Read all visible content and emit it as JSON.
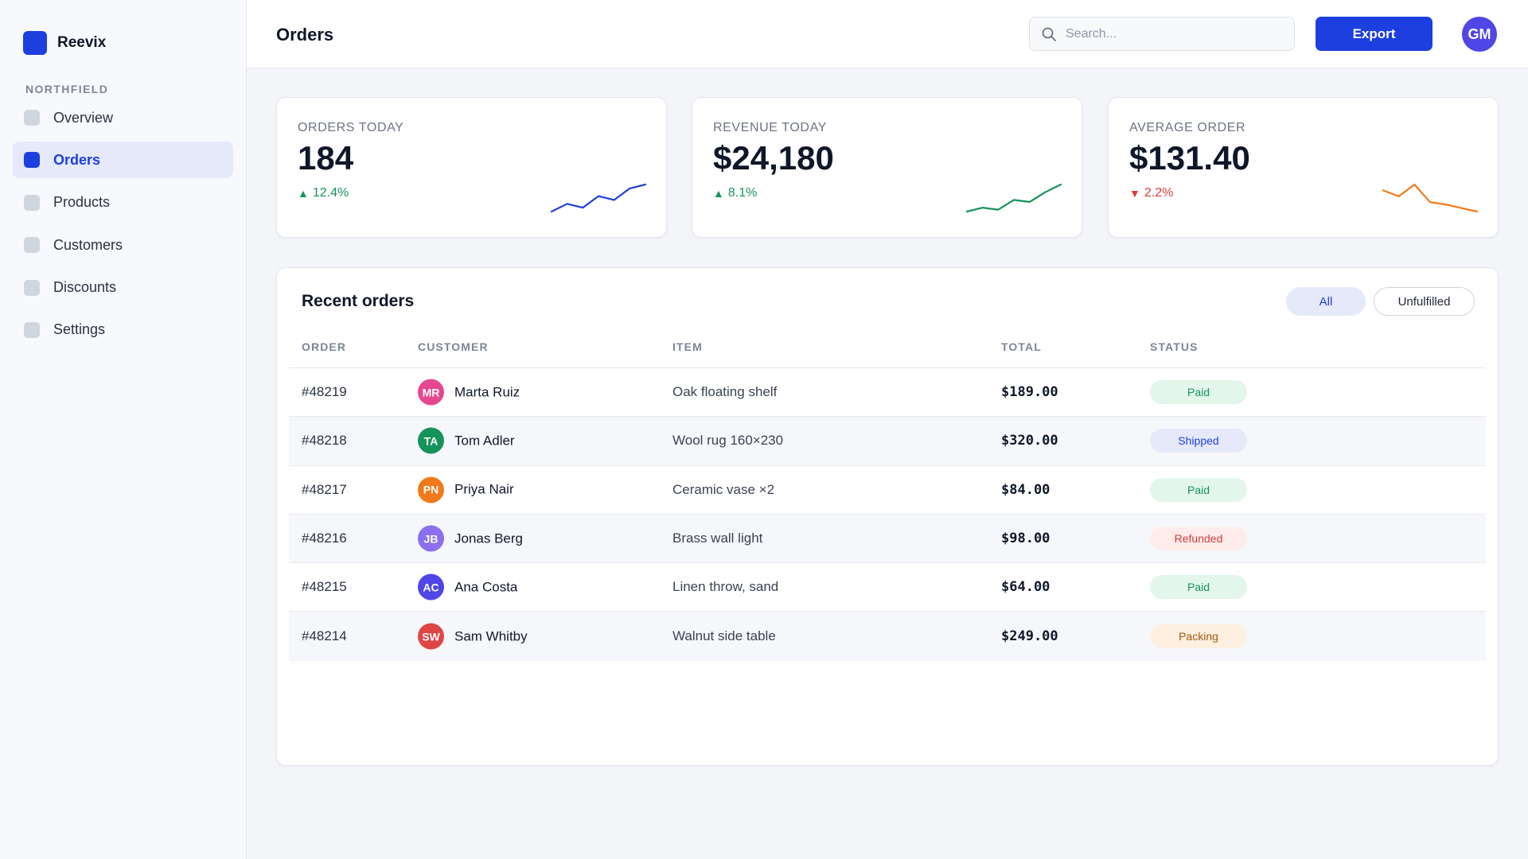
{
  "brand": {
    "name": "Reevix",
    "color": "#1d3fe0"
  },
  "sidebar": {
    "workspace": "NORTHFIELD",
    "items": [
      {
        "label": "Overview",
        "icon": "overview-icon",
        "active": false
      },
      {
        "label": "Orders",
        "icon": "orders-icon",
        "active": true
      },
      {
        "label": "Products",
        "icon": "products-icon",
        "active": false
      },
      {
        "label": "Customers",
        "icon": "customers-icon",
        "active": false
      },
      {
        "label": "Discounts",
        "icon": "discounts-icon",
        "active": false
      },
      {
        "label": "Settings",
        "icon": "settings-icon",
        "active": false
      }
    ]
  },
  "header": {
    "title": "Orders",
    "search_placeholder": "Search...",
    "export_label": "Export",
    "user_initials": "GM"
  },
  "stats": [
    {
      "label": "ORDERS TODAY",
      "value": "184",
      "delta": "12.4%",
      "trend": "up",
      "spark_color": "#1d3fe0",
      "spark": [
        3,
        5,
        4,
        7,
        6,
        9,
        10
      ]
    },
    {
      "label": "REVENUE TODAY",
      "value": "$24,180",
      "delta": "8.1%",
      "trend": "up",
      "spark_color": "#16935a",
      "spark": [
        3,
        4,
        3.5,
        6,
        5.5,
        8,
        10
      ]
    },
    {
      "label": "AVERAGE ORDER",
      "value": "$131.40",
      "delta": "2.2%",
      "trend": "down",
      "spark_color": "#f07a1a",
      "spark": [
        8,
        7.5,
        8.5,
        7,
        6.8,
        6.5,
        6.2
      ]
    }
  ],
  "orders": {
    "title": "Recent orders",
    "filters": {
      "all": "All",
      "unfulfilled": "Unfulfilled"
    },
    "columns": {
      "order": "ORDER",
      "customer": "CUSTOMER",
      "item": "ITEM",
      "total": "TOTAL",
      "status": "STATUS"
    },
    "rows": [
      {
        "order": "#48219",
        "initials": "MR",
        "avatar_color": "#e5488f",
        "customer": "Marta Ruiz",
        "item": "Oak floating shelf",
        "total": "$189.00",
        "status": "Paid",
        "status_kind": "paid"
      },
      {
        "order": "#48218",
        "initials": "TA",
        "avatar_color": "#16935a",
        "customer": "Tom Adler",
        "item": "Wool rug 160×230",
        "total": "$320.00",
        "status": "Shipped",
        "status_kind": "shipped"
      },
      {
        "order": "#48217",
        "initials": "PN",
        "avatar_color": "#f07a1a",
        "customer": "Priya Nair",
        "item": "Ceramic vase ×2",
        "total": "$84.00",
        "status": "Paid",
        "status_kind": "paid"
      },
      {
        "order": "#48216",
        "initials": "JB",
        "avatar_color": "#8b6ff0",
        "customer": "Jonas Berg",
        "item": "Brass wall light",
        "total": "$98.00",
        "status": "Refunded",
        "status_kind": "refunded"
      },
      {
        "order": "#48215",
        "initials": "AC",
        "avatar_color": "#4f46e5",
        "customer": "Ana Costa",
        "item": "Linen throw, sand",
        "total": "$64.00",
        "status": "Paid",
        "status_kind": "paid"
      },
      {
        "order": "#48214",
        "initials": "SW",
        "avatar_color": "#e04545",
        "customer": "Sam Whitby",
        "item": "Walnut side table",
        "total": "$249.00",
        "status": "Packing",
        "status_kind": "packing"
      }
    ]
  }
}
